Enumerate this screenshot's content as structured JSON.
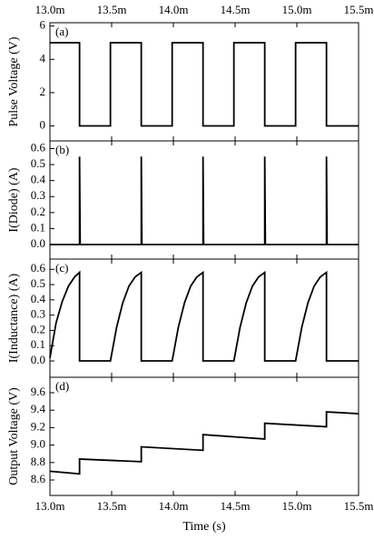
{
  "chart_data": [
    {
      "type": "line",
      "panel_label": "(a)",
      "ylabel": "Pulse Voltage (V)",
      "color": "#000000",
      "xlim": [
        0.013,
        0.0155
      ],
      "xticks": [
        {
          "value": 0.013,
          "label": "13.0m"
        },
        {
          "value": 0.0135,
          "label": "13.5m"
        },
        {
          "value": 0.014,
          "label": "14.0m"
        },
        {
          "value": 0.0145,
          "label": "14.5m"
        },
        {
          "value": 0.015,
          "label": "15.0m"
        },
        {
          "value": 0.0155,
          "label": "15.5m"
        }
      ],
      "ylim": [
        -0.9,
        6.2
      ],
      "yticks": [
        0,
        2,
        4,
        6
      ],
      "x": [
        0.013,
        0.01324,
        0.01324,
        0.01349,
        0.01349,
        0.01374,
        0.01374,
        0.01399,
        0.01399,
        0.01424,
        0.01424,
        0.01449,
        0.01449,
        0.01474,
        0.01474,
        0.01499,
        0.01499,
        0.01524,
        0.01524,
        0.0155
      ],
      "values": [
        5,
        5,
        0,
        0,
        5,
        5,
        0,
        0,
        5,
        5,
        0,
        0,
        5,
        5,
        0,
        0,
        5,
        5,
        0,
        0
      ]
    },
    {
      "type": "line",
      "panel_label": "(b)",
      "ylabel": "I(Diode) (A)",
      "color": "#000000",
      "xlim": [
        0.013,
        0.0155
      ],
      "xticks": [
        0.013,
        0.0135,
        0.014,
        0.0145,
        0.015,
        0.0155
      ],
      "ylim": [
        -0.091,
        0.648
      ],
      "yticks": [
        {
          "value": 0,
          "label": "0.0"
        },
        0.1,
        0.2,
        0.3,
        0.4,
        0.5,
        0.6
      ],
      "x": [
        0.013,
        0.01324,
        0.01324,
        0.013245,
        0.01374,
        0.01374,
        0.013745,
        0.01424,
        0.01424,
        0.014245,
        0.01474,
        0.01474,
        0.014745,
        0.01524,
        0.01524,
        0.015245,
        0.0155
      ],
      "values": [
        0,
        0,
        0.55,
        0,
        0,
        0.55,
        0,
        0,
        0.55,
        0,
        0,
        0.55,
        0,
        0,
        0.55,
        0,
        0
      ]
    },
    {
      "type": "line",
      "panel_label": "(c)",
      "ylabel": "I(Inductance) (A)",
      "color": "#000000",
      "xlim": [
        0.013,
        0.0155
      ],
      "xticks": [
        0.013,
        0.0135,
        0.014,
        0.0145,
        0.015,
        0.0155
      ],
      "ylim": [
        -0.107,
        0.667
      ],
      "yticks": [
        {
          "value": 0,
          "label": "0.0"
        },
        0.1,
        0.2,
        0.3,
        0.4,
        0.5,
        0.6
      ],
      "x": [
        0.013,
        0.01305,
        0.0131,
        0.01315,
        0.0132,
        0.01324,
        0.01324,
        0.01349,
        0.01354,
        0.01359,
        0.01364,
        0.01369,
        0.01374,
        0.01374,
        0.01399,
        0.01404,
        0.01409,
        0.01414,
        0.01419,
        0.01424,
        0.01424,
        0.01449,
        0.01454,
        0.01459,
        0.01464,
        0.01469,
        0.01474,
        0.01474,
        0.01499,
        0.01504,
        0.01509,
        0.01514,
        0.01519,
        0.01524,
        0.01524,
        0.0155
      ],
      "values": [
        0.02,
        0.25,
        0.39,
        0.49,
        0.55,
        0.58,
        0,
        0,
        0.22,
        0.38,
        0.49,
        0.55,
        0.58,
        0,
        0,
        0.22,
        0.38,
        0.49,
        0.55,
        0.58,
        0,
        0,
        0.22,
        0.38,
        0.49,
        0.55,
        0.58,
        0,
        0,
        0.22,
        0.38,
        0.49,
        0.55,
        0.58,
        0,
        0
      ]
    },
    {
      "type": "line",
      "panel_label": "(d)",
      "ylabel": "Output Voltage (V)",
      "xlabel": "Time (s)",
      "color": "#000000",
      "xlim": [
        0.013,
        0.0155
      ],
      "xticks": [
        {
          "value": 0.013,
          "label": "13.0m"
        },
        {
          "value": 0.0135,
          "label": "13.5m"
        },
        {
          "value": 0.014,
          "label": "14.0m"
        },
        {
          "value": 0.0145,
          "label": "14.5m"
        },
        {
          "value": 0.015,
          "label": "15.0m"
        },
        {
          "value": 0.0155,
          "label": "15.5m"
        }
      ],
      "ylim": [
        8.423,
        9.777
      ],
      "yticks": [
        8.6,
        8.8,
        {
          "value": 9,
          "label": "9.0"
        },
        9.2,
        9.4,
        9.6
      ],
      "x": [
        0.013,
        0.01324,
        0.01324,
        0.01374,
        0.01374,
        0.01424,
        0.01424,
        0.01474,
        0.01474,
        0.01524,
        0.01524,
        0.0155
      ],
      "values": [
        8.7,
        8.67,
        8.84,
        8.81,
        8.98,
        8.94,
        9.12,
        9.07,
        9.25,
        9.21,
        9.38,
        9.36
      ]
    }
  ]
}
